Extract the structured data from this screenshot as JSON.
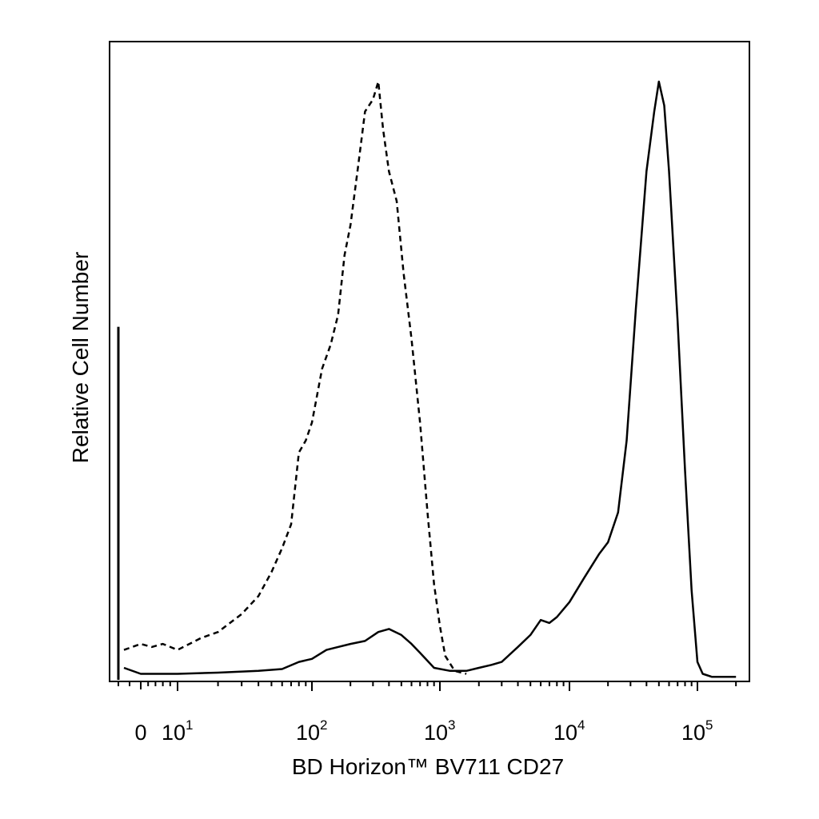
{
  "chart_data": {
    "type": "line",
    "title": "",
    "xlabel": "BD Horizon™ BV711 CD27",
    "ylabel": "Relative Cell Number",
    "x_scale": "biexponential (log above ~10)",
    "xlim": [
      -5,
      250000
    ],
    "ylim": [
      0,
      100
    ],
    "grid": false,
    "legend": "none",
    "x_ticks": [
      {
        "value": 0,
        "base": "0",
        "exp": ""
      },
      {
        "value": 10,
        "base": "10",
        "exp": "1"
      },
      {
        "value": 100,
        "base": "10",
        "exp": "2"
      },
      {
        "value": 1000,
        "base": "10",
        "exp": "3"
      },
      {
        "value": 10000,
        "base": "10",
        "exp": "4"
      },
      {
        "value": 100000,
        "base": "10",
        "exp": "5"
      }
    ],
    "series": [
      {
        "style": "dashed",
        "color": "#000000",
        "points": [
          [
            -3,
            5
          ],
          [
            0,
            6
          ],
          [
            3,
            5.5
          ],
          [
            6,
            6
          ],
          [
            10,
            5
          ],
          [
            15,
            7
          ],
          [
            20,
            8
          ],
          [
            30,
            11
          ],
          [
            40,
            14
          ],
          [
            50,
            18
          ],
          [
            60,
            22
          ],
          [
            70,
            26
          ],
          [
            80,
            38
          ],
          [
            90,
            40
          ],
          [
            100,
            43
          ],
          [
            120,
            52
          ],
          [
            140,
            56
          ],
          [
            160,
            61
          ],
          [
            180,
            71
          ],
          [
            200,
            76
          ],
          [
            230,
            86
          ],
          [
            260,
            95
          ],
          [
            300,
            97
          ],
          [
            330,
            100
          ],
          [
            360,
            92
          ],
          [
            400,
            85
          ],
          [
            460,
            80
          ],
          [
            520,
            68
          ],
          [
            600,
            57
          ],
          [
            700,
            43
          ],
          [
            800,
            28
          ],
          [
            900,
            16
          ],
          [
            1000,
            9
          ],
          [
            1100,
            4
          ],
          [
            1300,
            1.5
          ],
          [
            1600,
            1
          ]
        ]
      },
      {
        "style": "solid",
        "color": "#000000",
        "points": [
          [
            -3,
            2
          ],
          [
            0,
            1
          ],
          [
            10,
            1
          ],
          [
            20,
            1.2
          ],
          [
            40,
            1.5
          ],
          [
            60,
            1.8
          ],
          [
            80,
            3
          ],
          [
            100,
            3.5
          ],
          [
            130,
            5
          ],
          [
            160,
            5.5
          ],
          [
            200,
            6
          ],
          [
            260,
            6.5
          ],
          [
            330,
            8
          ],
          [
            400,
            8.5
          ],
          [
            500,
            7.5
          ],
          [
            600,
            6
          ],
          [
            700,
            4.5
          ],
          [
            900,
            2
          ],
          [
            1200,
            1.5
          ],
          [
            1600,
            1.5
          ],
          [
            2000,
            2
          ],
          [
            2500,
            2.5
          ],
          [
            3000,
            3
          ],
          [
            4000,
            5.5
          ],
          [
            5000,
            7.5
          ],
          [
            6000,
            10
          ],
          [
            7000,
            9.5
          ],
          [
            8000,
            10.5
          ],
          [
            10000,
            13
          ],
          [
            13000,
            17
          ],
          [
            17000,
            21
          ],
          [
            20000,
            23
          ],
          [
            24000,
            28
          ],
          [
            28000,
            40
          ],
          [
            33000,
            62
          ],
          [
            40000,
            85
          ],
          [
            46000,
            95
          ],
          [
            50000,
            100
          ],
          [
            55000,
            96
          ],
          [
            60000,
            85
          ],
          [
            70000,
            60
          ],
          [
            80000,
            35
          ],
          [
            90000,
            15
          ],
          [
            100000,
            3
          ],
          [
            110000,
            1
          ],
          [
            130000,
            0.5
          ],
          [
            200000,
            0.5
          ]
        ]
      }
    ],
    "spike": {
      "x": -4,
      "height": 59,
      "style": "solid"
    }
  }
}
